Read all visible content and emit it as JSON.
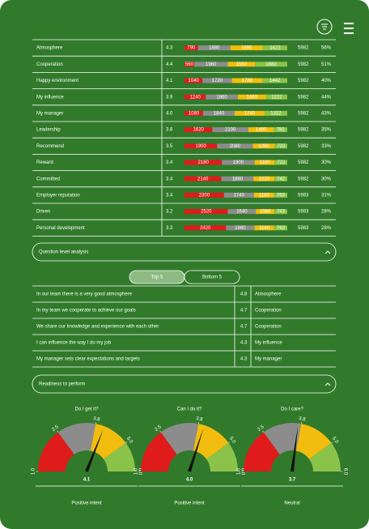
{
  "table": {
    "rows": [
      {
        "label": "Atmosphere",
        "score": "4.3",
        "segments": [
          790,
          1880,
          1890,
          1422
        ],
        "count": "5982",
        "share": "56%"
      },
      {
        "label": "Cooperation",
        "score": "4.4",
        "segments": [
          560,
          1960,
          1580,
          1882
        ],
        "count": "5982",
        "share": "51%"
      },
      {
        "label": "Happy environment",
        "score": "4.1",
        "segments": [
          1040,
          1720,
          1780,
          1442
        ],
        "count": "5982",
        "share": "40%"
      },
      {
        "label": "My influence",
        "score": "3.9",
        "segments": [
          1240,
          1860,
          1660,
          1222
        ],
        "count": "5982",
        "share": "44%"
      },
      {
        "label": "My manager",
        "score": "4.0",
        "segments": [
          1080,
          1840,
          1740,
          1322
        ],
        "count": "5982",
        "share": "43%"
      },
      {
        "label": "Leadership",
        "score": "3.8",
        "segments": [
          1620,
          2100,
          1480,
          782
        ],
        "count": "5982",
        "share": "35%"
      },
      {
        "label": "Recommend",
        "score": "3.5",
        "segments": [
          1900,
          2080,
          1280,
          722
        ],
        "count": "5982",
        "share": "33%"
      },
      {
        "label": "Reward",
        "score": "3.4",
        "segments": [
          2180,
          1900,
          1180,
          722
        ],
        "count": "5982",
        "share": "30%"
      },
      {
        "label": "Committed",
        "score": "3.4",
        "segments": [
          2140,
          1880,
          1220,
          742
        ],
        "count": "5982",
        "share": "30%"
      },
      {
        "label": "Employer reputation",
        "score": "3.4",
        "segments": [
          2300,
          1740,
          1180,
          763
        ],
        "count": "5983",
        "share": "31%"
      },
      {
        "label": "Driven",
        "score": "3.2",
        "segments": [
          2520,
          1640,
          1080,
          743
        ],
        "count": "5983",
        "share": "28%"
      },
      {
        "label": "Personal development",
        "score": "3.3",
        "segments": [
          2420,
          1660,
          1140,
          763
        ],
        "count": "5983",
        "share": "28%"
      }
    ]
  },
  "question_section": {
    "title": "Question level analysis",
    "tabs": [
      "Top 5",
      "Bottom 5"
    ],
    "rows": [
      {
        "question": "In our team there is a very good atmosphere",
        "score": "4.8",
        "dimension": "Atmosphere"
      },
      {
        "question": "In my team we cooperate to achieve our goals",
        "score": "4.7",
        "dimension": "Cooperation"
      },
      {
        "question": "We share our knowledge and experience with each other",
        "score": "4.7",
        "dimension": "Cooperation"
      },
      {
        "question": "I can influence the way I do my job",
        "score": "4.3",
        "dimension": "My influence"
      },
      {
        "question": "My manager sets clear expectations and targets",
        "score": "4.3",
        "dimension": "My manager"
      }
    ]
  },
  "readiness": {
    "title": "Readiness to perform",
    "ticks": [
      {
        "value": 1,
        "label": "1.0"
      },
      {
        "value": 2.5,
        "label": "2.5"
      },
      {
        "value": 3.8,
        "label": "3.8"
      },
      {
        "value": 5,
        "label": "5.0"
      },
      {
        "value": 6,
        "label": "6.0"
      }
    ],
    "gauges": [
      {
        "title": "Do I get it?",
        "value": 4.1,
        "value_label": "4.1",
        "verdict": "Positive intent"
      },
      {
        "title": "Can I do it?",
        "value": 4,
        "value_label": "4.0",
        "verdict": "Positive intent"
      },
      {
        "title": "Do I care?",
        "value": 3.7,
        "value_label": "3.7",
        "verdict": "Neutral"
      }
    ]
  }
}
